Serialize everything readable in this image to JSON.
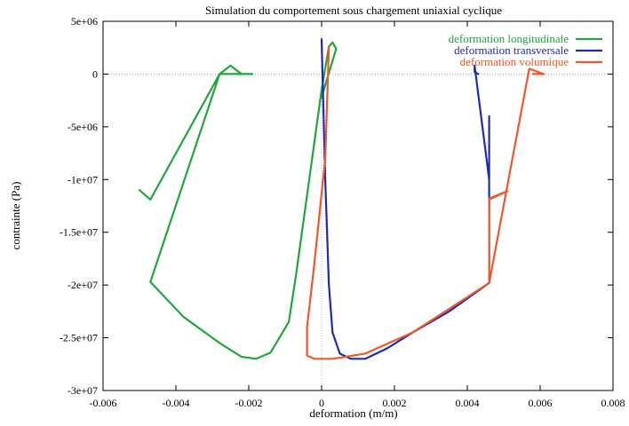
{
  "chart_data": {
    "type": "line",
    "title": "Simulation du comportement sous chargement uniaxial cyclique",
    "xlabel": "deformation (m/m)",
    "ylabel": "contrainte (Pa)",
    "xlim": [
      -0.006,
      0.008
    ],
    "ylim": [
      -30000000,
      5000000
    ],
    "x_ticks": [
      -0.006,
      -0.004,
      -0.002,
      0,
      0.002,
      0.004,
      0.006,
      0.008
    ],
    "x_tick_labels": [
      "-0.006",
      "-0.004",
      "-0.002",
      "0",
      "0.002",
      "0.004",
      "0.006",
      "0.008"
    ],
    "y_ticks": [
      5000000,
      0,
      -5000000,
      -10000000,
      -15000000,
      -20000000,
      -25000000,
      -30000000
    ],
    "y_tick_labels": [
      "5e+06",
      "0",
      "-5e+06",
      "-1e+07",
      "-1.5e+07",
      "-2e+07",
      "-2.5e+07",
      "-3e+07"
    ],
    "grid": false,
    "zero_lines": true,
    "legend_position": "top-right",
    "series": [
      {
        "name": "deformation longitudinale",
        "color": "#1fa83a",
        "points": [
          [
            -0.005,
            -11000000
          ],
          [
            -0.0047,
            -11900000
          ],
          [
            -0.0028,
            0
          ],
          [
            -0.0025,
            800000
          ],
          [
            -0.0022,
            0
          ],
          [
            -0.0019,
            0
          ],
          [
            -0.0028,
            0
          ],
          [
            -0.0047,
            -19700000
          ],
          [
            -0.0038,
            -23000000
          ],
          [
            -0.0028,
            -25500000
          ],
          [
            -0.0022,
            -26800000
          ],
          [
            -0.0018,
            -27000000
          ],
          [
            -0.0014,
            -26400000
          ],
          [
            -0.0009,
            -23500000
          ],
          [
            -0.0007,
            -19000000
          ],
          [
            -0.0003,
            -9000000
          ],
          [
            0.0,
            -1500000
          ],
          [
            0.0002,
            2600000
          ],
          [
            0.0003,
            3000000
          ],
          [
            0.0004,
            2400000
          ],
          [
            0.0,
            -2200000
          ]
        ]
      },
      {
        "name": "deformation transversale",
        "color": "#1e2bb3",
        "points": [
          [
            0.0,
            3300000
          ],
          [
            0.0001,
            -10000000
          ],
          [
            0.0002,
            -20000000
          ],
          [
            0.0003,
            -24500000
          ],
          [
            0.0005,
            -26500000
          ],
          [
            0.0008,
            -27000000
          ],
          [
            0.0012,
            -27000000
          ],
          [
            0.0018,
            -26000000
          ],
          [
            0.0025,
            -24500000
          ],
          [
            0.0035,
            -22500000
          ],
          [
            0.0046,
            -19800000
          ],
          [
            0.0046,
            -4000000
          ],
          [
            0.0046,
            -10000000
          ],
          [
            0.0042,
            800000
          ],
          [
            0.0042,
            200000
          ],
          [
            0.0043,
            0
          ]
        ]
      },
      {
        "name": "deformation volumique",
        "color": "#f2572b",
        "points": [
          [
            0.0002,
            2600000
          ],
          [
            0.0001,
            -8000000
          ],
          [
            -0.0002,
            -18000000
          ],
          [
            -0.0004,
            -24000000
          ],
          [
            -0.0004,
            -26700000
          ],
          [
            -0.0002,
            -27000000
          ],
          [
            0.0003,
            -27000000
          ],
          [
            0.0012,
            -26500000
          ],
          [
            0.0025,
            -24500000
          ],
          [
            0.0046,
            -19800000
          ],
          [
            0.0046,
            -11900000
          ],
          [
            0.0051,
            -11100000
          ],
          [
            0.0046,
            -11800000
          ],
          [
            0.0046,
            -19800000
          ],
          [
            0.0057,
            500000
          ],
          [
            0.0061,
            0
          ],
          [
            0.0058,
            0
          ]
        ]
      }
    ]
  }
}
